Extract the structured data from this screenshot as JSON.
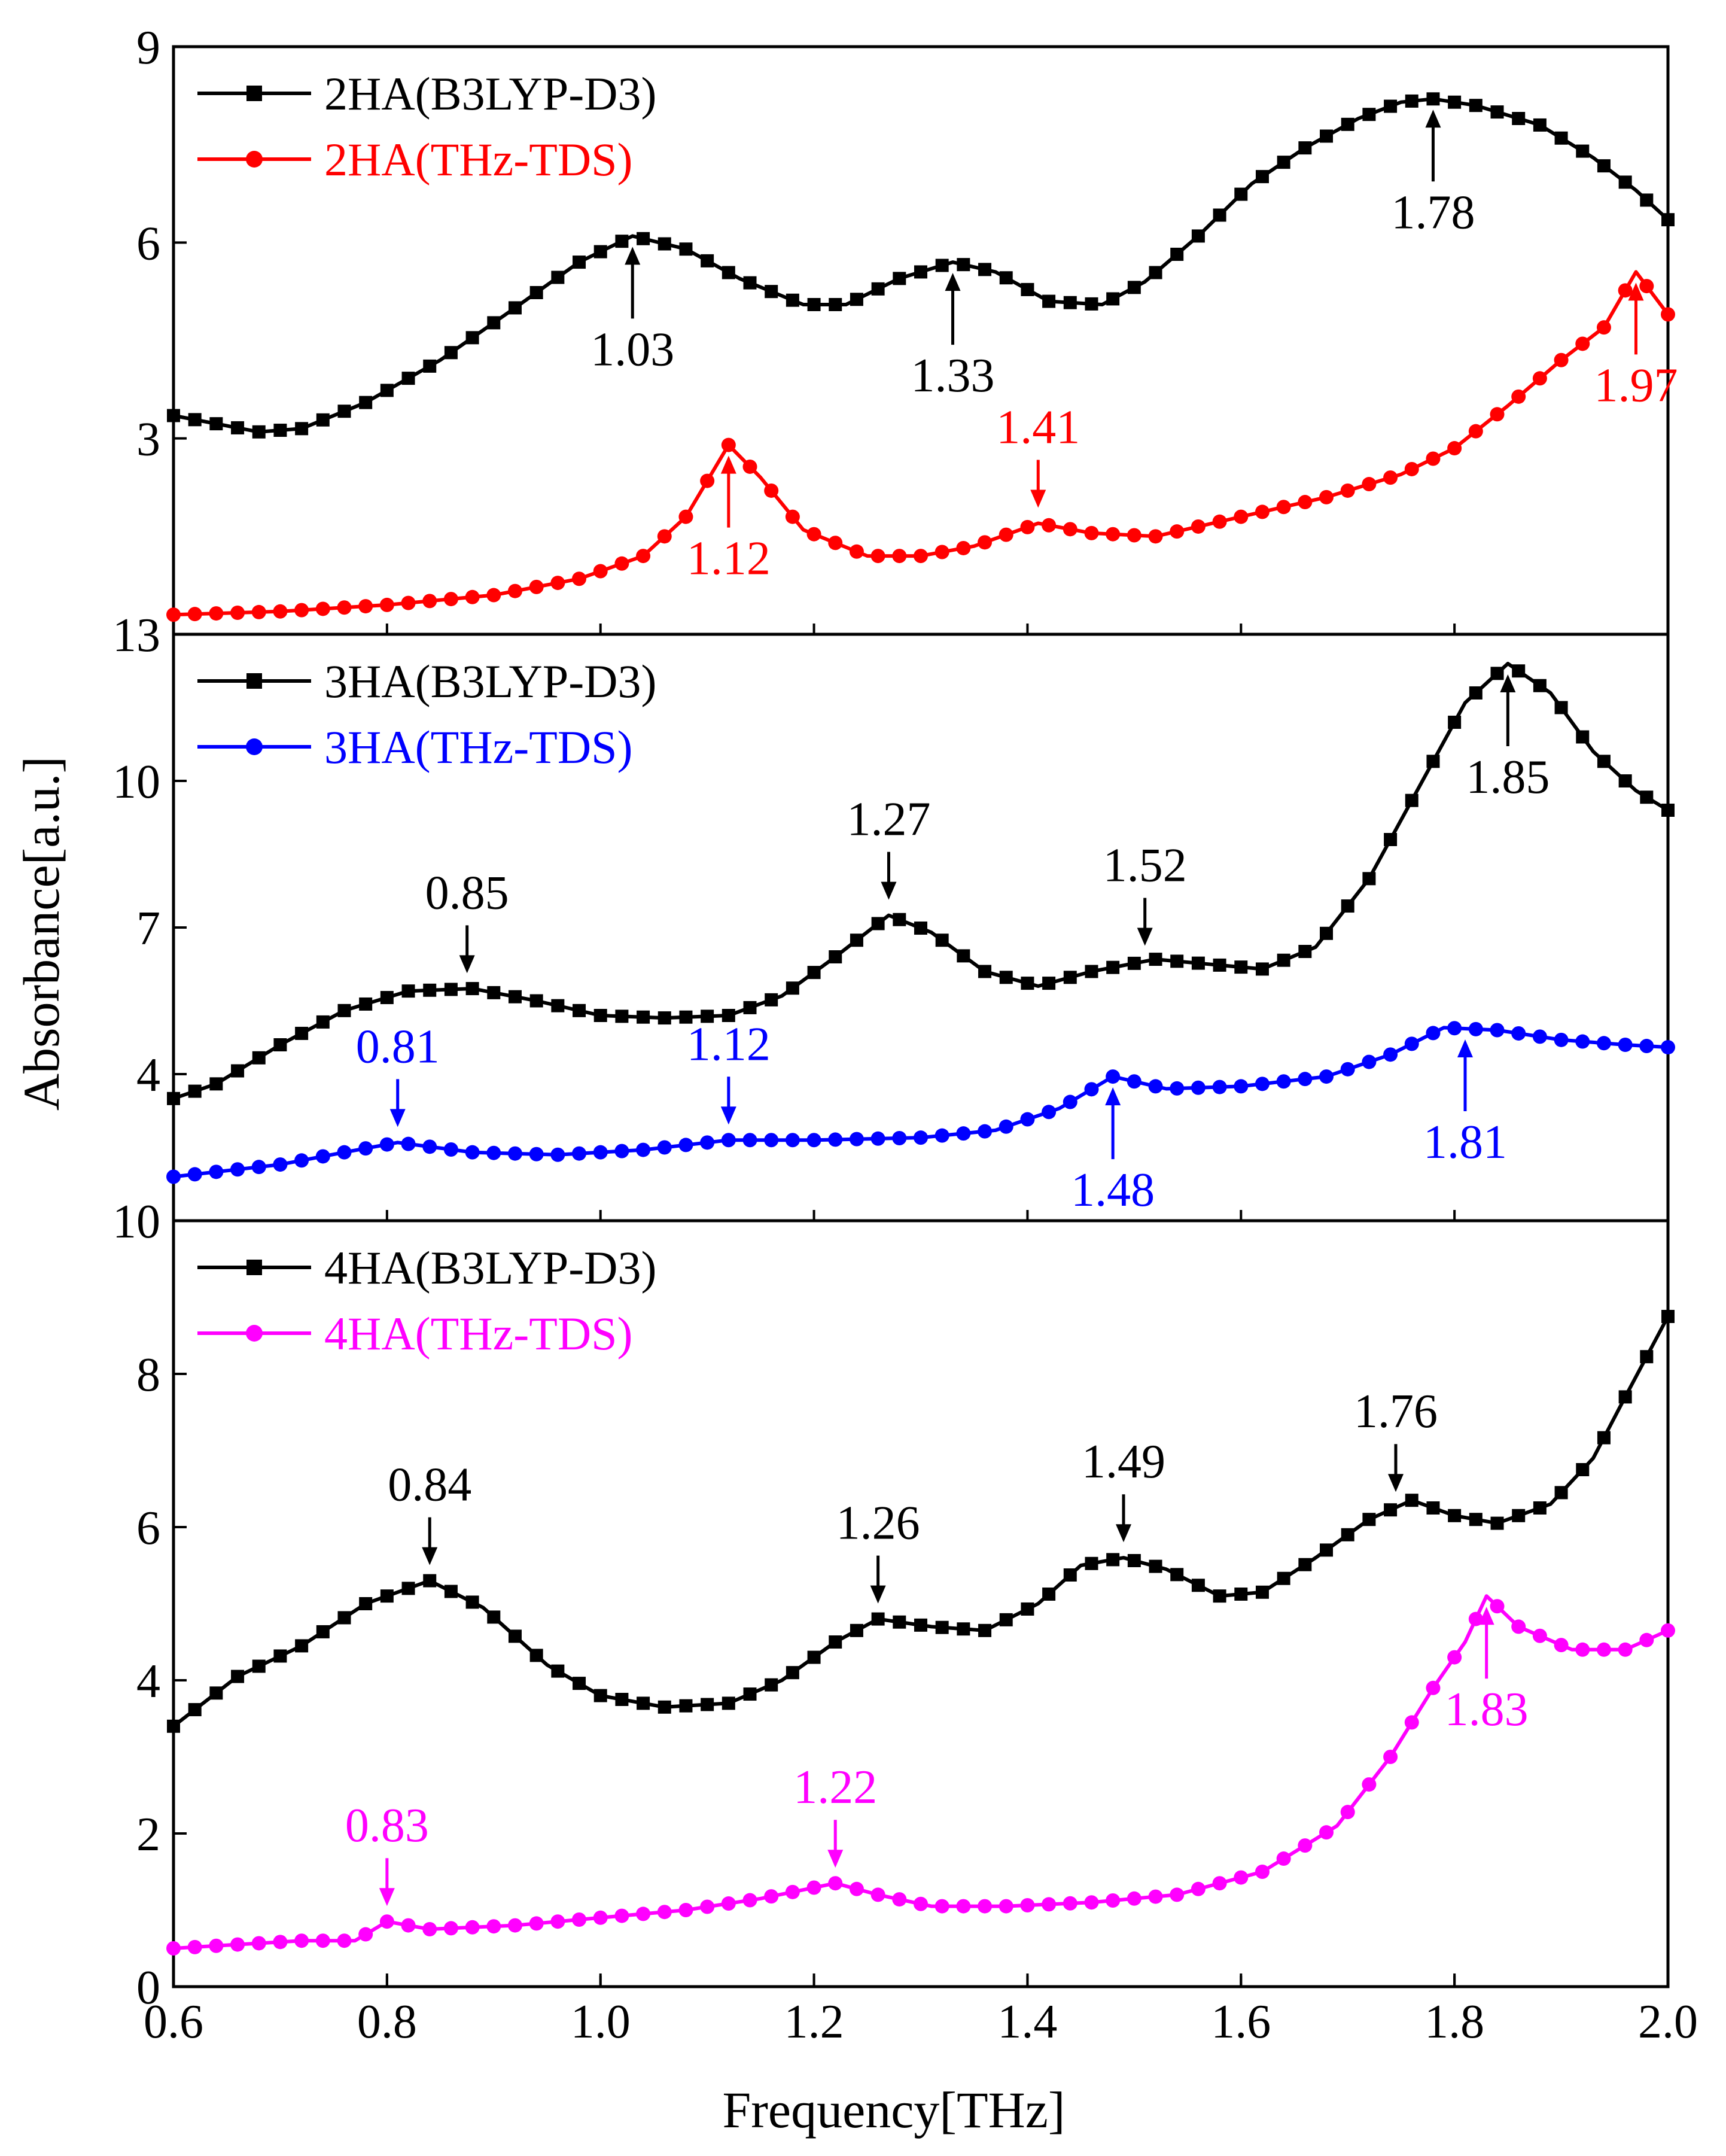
{
  "chart_data": {
    "type": "line",
    "xlabel": "Frequency[THz]",
    "ylabel": "Absorbance[a.u.]",
    "xlim": [
      0.6,
      2.0
    ],
    "x_ticks": [
      "0.6",
      "0.8",
      "1.0",
      "1.2",
      "1.4",
      "1.6",
      "1.8",
      "2.0"
    ],
    "x_tick_values": [
      0.6,
      0.8,
      1.0,
      1.2,
      1.4,
      1.6,
      1.8,
      2.0
    ],
    "panels": [
      {
        "ylim": [
          0,
          9
        ],
        "y_ticks": [
          "3",
          "6",
          "9"
        ],
        "y_tick_values": [
          3,
          6,
          9
        ],
        "legend_position": "top-left",
        "series": [
          {
            "name": "2HA(B3LYP-D3)",
            "color": "#000000",
            "marker": "square",
            "points": [
              [
                0.6,
                3.35
              ],
              [
                0.68,
                3.1
              ],
              [
                0.72,
                3.15
              ],
              [
                0.78,
                3.55
              ],
              [
                0.85,
                4.2
              ],
              [
                0.92,
                5.0
              ],
              [
                0.98,
                5.7
              ],
              [
                1.03,
                6.1
              ],
              [
                1.08,
                5.9
              ],
              [
                1.13,
                5.45
              ],
              [
                1.19,
                5.05
              ],
              [
                1.23,
                5.05
              ],
              [
                1.28,
                5.45
              ],
              [
                1.33,
                5.7
              ],
              [
                1.37,
                5.55
              ],
              [
                1.42,
                5.1
              ],
              [
                1.47,
                5.05
              ],
              [
                1.51,
                5.4
              ],
              [
                1.56,
                6.1
              ],
              [
                1.61,
                6.9
              ],
              [
                1.66,
                7.45
              ],
              [
                1.71,
                7.9
              ],
              [
                1.75,
                8.15
              ],
              [
                1.78,
                8.2
              ],
              [
                1.82,
                8.1
              ],
              [
                1.88,
                7.8
              ],
              [
                1.93,
                7.3
              ],
              [
                1.97,
                6.8
              ],
              [
                2.0,
                6.35
              ]
            ]
          },
          {
            "name": "2HA(THz-TDS)",
            "color": "#ff0000",
            "marker": "circle",
            "points": [
              [
                0.6,
                0.3
              ],
              [
                0.7,
                0.35
              ],
              [
                0.8,
                0.45
              ],
              [
                0.9,
                0.6
              ],
              [
                0.98,
                0.85
              ],
              [
                1.04,
                1.2
              ],
              [
                1.08,
                1.8
              ],
              [
                1.12,
                2.9
              ],
              [
                1.15,
                2.4
              ],
              [
                1.19,
                1.6
              ],
              [
                1.25,
                1.2
              ],
              [
                1.3,
                1.2
              ],
              [
                1.35,
                1.35
              ],
              [
                1.41,
                1.7
              ],
              [
                1.46,
                1.55
              ],
              [
                1.52,
                1.5
              ],
              [
                1.6,
                1.8
              ],
              [
                1.68,
                2.1
              ],
              [
                1.75,
                2.45
              ],
              [
                1.8,
                2.85
              ],
              [
                1.85,
                3.5
              ],
              [
                1.9,
                4.2
              ],
              [
                1.94,
                4.7
              ],
              [
                1.97,
                5.55
              ],
              [
                2.0,
                4.9
              ]
            ]
          }
        ],
        "annotations": [
          {
            "text": "1.03",
            "x": 1.03,
            "color": "#000000",
            "series": 0,
            "dir": "up"
          },
          {
            "text": "1.33",
            "x": 1.33,
            "color": "#000000",
            "series": 0,
            "dir": "up"
          },
          {
            "text": "1.78",
            "x": 1.78,
            "color": "#000000",
            "series": 0,
            "dir": "up"
          },
          {
            "text": "1.12",
            "x": 1.12,
            "color": "#ff0000",
            "series": 1,
            "dir": "up"
          },
          {
            "text": "1.41",
            "x": 1.41,
            "color": "#ff0000",
            "series": 1,
            "dir": "down"
          },
          {
            "text": "1.97",
            "x": 1.97,
            "color": "#ff0000",
            "series": 1,
            "dir": "up"
          }
        ]
      },
      {
        "ylim": [
          1,
          13
        ],
        "y_ticks": [
          "4",
          "7",
          "10",
          "13"
        ],
        "y_tick_values": [
          4,
          7,
          10,
          13
        ],
        "legend_position": "top-left",
        "series": [
          {
            "name": "3HA(B3LYP-D3)",
            "color": "#000000",
            "marker": "square",
            "points": [
              [
                0.6,
                3.5
              ],
              [
                0.64,
                3.8
              ],
              [
                0.7,
                4.6
              ],
              [
                0.76,
                5.3
              ],
              [
                0.82,
                5.7
              ],
              [
                0.88,
                5.75
              ],
              [
                0.94,
                5.5
              ],
              [
                1.0,
                5.2
              ],
              [
                1.06,
                5.15
              ],
              [
                1.12,
                5.2
              ],
              [
                1.17,
                5.6
              ],
              [
                1.22,
                6.4
              ],
              [
                1.27,
                7.25
              ],
              [
                1.31,
                6.9
              ],
              [
                1.36,
                6.1
              ],
              [
                1.41,
                5.8
              ],
              [
                1.46,
                6.1
              ],
              [
                1.52,
                6.35
              ],
              [
                1.57,
                6.25
              ],
              [
                1.62,
                6.15
              ],
              [
                1.67,
                6.6
              ],
              [
                1.72,
                8.0
              ],
              [
                1.77,
                10.0
              ],
              [
                1.81,
                11.6
              ],
              [
                1.85,
                12.4
              ],
              [
                1.89,
                11.8
              ],
              [
                1.93,
                10.6
              ],
              [
                1.97,
                9.8
              ],
              [
                2.0,
                9.4
              ]
            ]
          },
          {
            "name": "3HA(THz-TDS)",
            "color": "#0000ff",
            "marker": "circle",
            "points": [
              [
                0.6,
                1.9
              ],
              [
                0.7,
                2.15
              ],
              [
                0.76,
                2.4
              ],
              [
                0.81,
                2.6
              ],
              [
                0.88,
                2.4
              ],
              [
                0.96,
                2.35
              ],
              [
                1.04,
                2.45
              ],
              [
                1.12,
                2.65
              ],
              [
                1.2,
                2.65
              ],
              [
                1.3,
                2.7
              ],
              [
                1.37,
                2.85
              ],
              [
                1.43,
                3.3
              ],
              [
                1.48,
                3.95
              ],
              [
                1.53,
                3.7
              ],
              [
                1.6,
                3.75
              ],
              [
                1.68,
                3.95
              ],
              [
                1.74,
                4.4
              ],
              [
                1.79,
                4.95
              ],
              [
                1.84,
                4.9
              ],
              [
                1.9,
                4.7
              ],
              [
                1.96,
                4.6
              ],
              [
                2.0,
                4.55
              ]
            ]
          }
        ],
        "annotations": [
          {
            "text": "0.85",
            "x": 0.875,
            "color": "#000000",
            "series": 0,
            "dir": "down"
          },
          {
            "text": "1.27",
            "x": 1.27,
            "color": "#000000",
            "series": 0,
            "dir": "down"
          },
          {
            "text": "1.52",
            "x": 1.51,
            "color": "#000000",
            "series": 0,
            "dir": "down"
          },
          {
            "text": "1.85",
            "x": 1.85,
            "color": "#000000",
            "series": 0,
            "dir": "up"
          },
          {
            "text": "0.81",
            "x": 0.81,
            "color": "#0000ff",
            "series": 1,
            "dir": "down"
          },
          {
            "text": "1.12",
            "x": 1.12,
            "color": "#0000ff",
            "series": 1,
            "dir": "down"
          },
          {
            "text": "1.48",
            "x": 1.48,
            "color": "#0000ff",
            "series": 1,
            "dir": "up"
          },
          {
            "text": "1.81",
            "x": 1.81,
            "color": "#0000ff",
            "series": 1,
            "dir": "up"
          }
        ]
      },
      {
        "ylim": [
          0,
          10
        ],
        "y_ticks": [
          "0",
          "2",
          "4",
          "6",
          "8",
          "10"
        ],
        "y_tick_values": [
          0,
          2,
          4,
          6,
          8,
          10
        ],
        "legend_position": "top-left",
        "series": [
          {
            "name": "4HA(B3LYP-D3)",
            "color": "#000000",
            "marker": "square",
            "points": [
              [
                0.6,
                3.4
              ],
              [
                0.66,
                4.05
              ],
              [
                0.72,
                4.45
              ],
              [
                0.78,
                5.0
              ],
              [
                0.84,
                5.3
              ],
              [
                0.89,
                4.95
              ],
              [
                0.95,
                4.2
              ],
              [
                1.0,
                3.8
              ],
              [
                1.06,
                3.65
              ],
              [
                1.12,
                3.7
              ],
              [
                1.17,
                4.0
              ],
              [
                1.22,
                4.5
              ],
              [
                1.26,
                4.8
              ],
              [
                1.31,
                4.7
              ],
              [
                1.36,
                4.65
              ],
              [
                1.41,
                5.0
              ],
              [
                1.45,
                5.5
              ],
              [
                1.49,
                5.6
              ],
              [
                1.53,
                5.45
              ],
              [
                1.58,
                5.1
              ],
              [
                1.62,
                5.15
              ],
              [
                1.67,
                5.6
              ],
              [
                1.72,
                6.1
              ],
              [
                1.76,
                6.35
              ],
              [
                1.8,
                6.15
              ],
              [
                1.84,
                6.05
              ],
              [
                1.89,
                6.3
              ],
              [
                1.93,
                6.9
              ],
              [
                1.96,
                7.7
              ],
              [
                2.0,
                8.75
              ]
            ]
          },
          {
            "name": "4HA(THz-TDS)",
            "color": "#ff00ff",
            "marker": "circle",
            "points": [
              [
                0.6,
                0.5
              ],
              [
                0.66,
                0.55
              ],
              [
                0.72,
                0.6
              ],
              [
                0.77,
                0.6
              ],
              [
                0.8,
                0.85
              ],
              [
                0.84,
                0.75
              ],
              [
                0.92,
                0.8
              ],
              [
                1.0,
                0.9
              ],
              [
                1.08,
                1.0
              ],
              [
                1.15,
                1.15
              ],
              [
                1.22,
                1.35
              ],
              [
                1.26,
                1.2
              ],
              [
                1.31,
                1.05
              ],
              [
                1.38,
                1.05
              ],
              [
                1.46,
                1.1
              ],
              [
                1.54,
                1.2
              ],
              [
                1.62,
                1.5
              ],
              [
                1.69,
                2.1
              ],
              [
                1.74,
                3.0
              ],
              [
                1.78,
                3.9
              ],
              [
                1.81,
                4.5
              ],
              [
                1.83,
                5.1
              ],
              [
                1.86,
                4.7
              ],
              [
                1.91,
                4.4
              ],
              [
                1.96,
                4.4
              ],
              [
                2.0,
                4.65
              ]
            ]
          }
        ],
        "annotations": [
          {
            "text": "0.84",
            "x": 0.84,
            "color": "#000000",
            "series": 0,
            "dir": "down"
          },
          {
            "text": "1.26",
            "x": 1.26,
            "color": "#000000",
            "series": 0,
            "dir": "down"
          },
          {
            "text": "1.49",
            "x": 1.49,
            "color": "#000000",
            "series": 0,
            "dir": "down"
          },
          {
            "text": "1.76",
            "x": 1.745,
            "color": "#000000",
            "series": 0,
            "dir": "down"
          },
          {
            "text": "0.83",
            "x": 0.8,
            "color": "#ff00ff",
            "series": 1,
            "dir": "down"
          },
          {
            "text": "1.22",
            "x": 1.22,
            "color": "#ff00ff",
            "series": 1,
            "dir": "down"
          },
          {
            "text": "1.83",
            "x": 1.83,
            "color": "#ff00ff",
            "series": 1,
            "dir": "up"
          }
        ]
      }
    ]
  }
}
